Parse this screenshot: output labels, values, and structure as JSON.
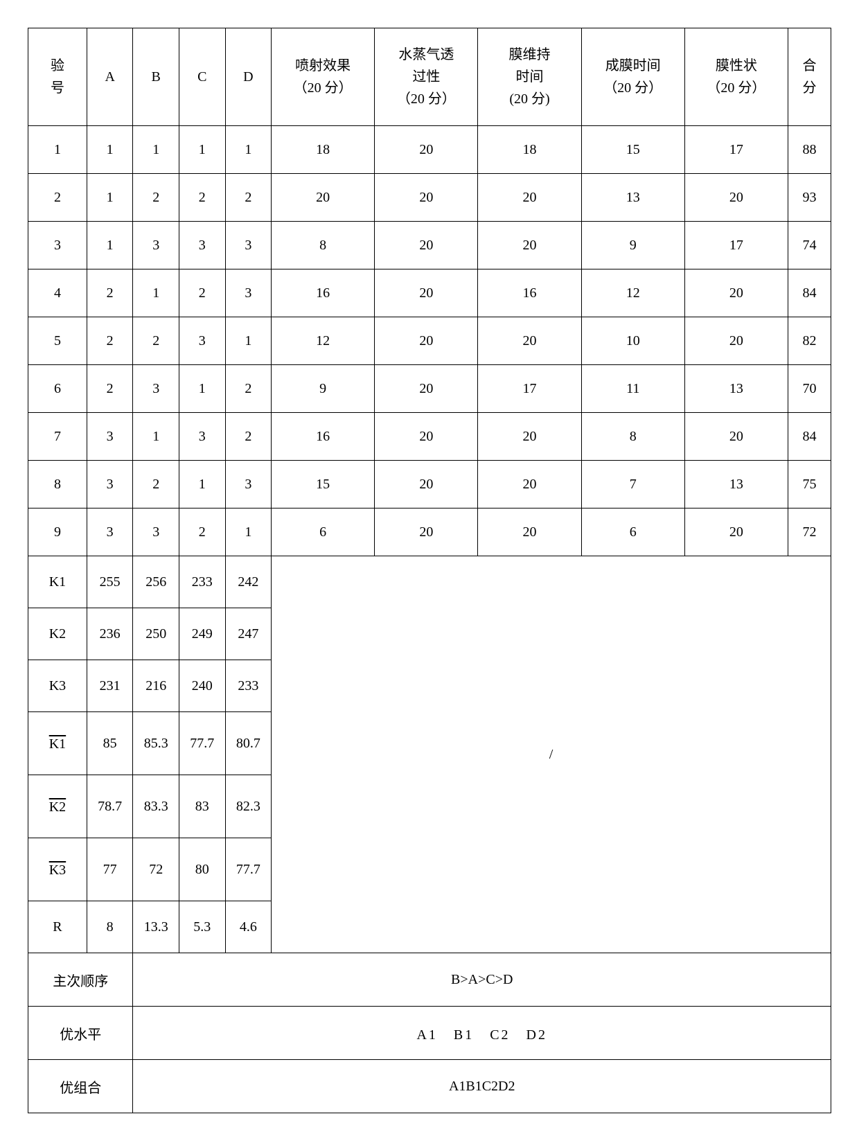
{
  "headers": {
    "exp_no": "验\n号",
    "A": "A",
    "B": "B",
    "C": "C",
    "D": "D",
    "spray": "喷射效果\n（20 分）",
    "vapor": "水蒸气透\n过性\n（20 分）",
    "duration": "膜维持\n时间\n(20 分)",
    "film_time": "成膜时间\n（20 分）",
    "film_shape": "膜性状\n（20 分）",
    "total": "合\n分"
  },
  "rows": [
    {
      "n": "1",
      "A": "1",
      "B": "1",
      "C": "1",
      "D": "1",
      "s1": "18",
      "s2": "20",
      "s3": "18",
      "s4": "15",
      "s5": "17",
      "t": "88"
    },
    {
      "n": "2",
      "A": "1",
      "B": "2",
      "C": "2",
      "D": "2",
      "s1": "20",
      "s2": "20",
      "s3": "20",
      "s4": "13",
      "s5": "20",
      "t": "93"
    },
    {
      "n": "3",
      "A": "1",
      "B": "3",
      "C": "3",
      "D": "3",
      "s1": "8",
      "s2": "20",
      "s3": "20",
      "s4": "9",
      "s5": "17",
      "t": "74"
    },
    {
      "n": "4",
      "A": "2",
      "B": "1",
      "C": "2",
      "D": "3",
      "s1": "16",
      "s2": "20",
      "s3": "16",
      "s4": "12",
      "s5": "20",
      "t": "84"
    },
    {
      "n": "5",
      "A": "2",
      "B": "2",
      "C": "3",
      "D": "1",
      "s1": "12",
      "s2": "20",
      "s3": "20",
      "s4": "10",
      "s5": "20",
      "t": "82"
    },
    {
      "n": "6",
      "A": "2",
      "B": "3",
      "C": "1",
      "D": "2",
      "s1": "9",
      "s2": "20",
      "s3": "17",
      "s4": "11",
      "s5": "13",
      "t": "70"
    },
    {
      "n": "7",
      "A": "3",
      "B": "1",
      "C": "3",
      "D": "2",
      "s1": "16",
      "s2": "20",
      "s3": "20",
      "s4": "8",
      "s5": "20",
      "t": "84"
    },
    {
      "n": "8",
      "A": "3",
      "B": "2",
      "C": "1",
      "D": "3",
      "s1": "15",
      "s2": "20",
      "s3": "20",
      "s4": "7",
      "s5": "13",
      "t": "75"
    },
    {
      "n": "9",
      "A": "3",
      "B": "3",
      "C": "2",
      "D": "1",
      "s1": "6",
      "s2": "20",
      "s3": "20",
      "s4": "6",
      "s5": "20",
      "t": "72"
    }
  ],
  "K": [
    {
      "label": "K1",
      "A": "255",
      "B": "256",
      "C": "233",
      "D": "242"
    },
    {
      "label": "K2",
      "A": "236",
      "B": "250",
      "C": "249",
      "D": "247"
    },
    {
      "label": "K3",
      "A": "231",
      "B": "216",
      "C": "240",
      "D": "233"
    }
  ],
  "Kbar": [
    {
      "label": "K1",
      "A": "85",
      "B": "85.3",
      "C": "77.7",
      "D": "80.7"
    },
    {
      "label": "K2",
      "A": "78.7",
      "B": "83.3",
      "C": "83",
      "D": "82.3"
    },
    {
      "label": "K3",
      "A": "77",
      "B": "72",
      "C": "80",
      "D": "77.7"
    }
  ],
  "R": {
    "label": "R",
    "A": "8",
    "B": "13.3",
    "C": "5.3",
    "D": "4.6"
  },
  "slash": "/",
  "summary": {
    "order_label": "主次顺序",
    "order_value": "B>A>C>D",
    "level_label": "优水平",
    "level_value": "A1　B1　C2　D2",
    "combo_label": "优组合",
    "combo_value": "A1B1C2D2"
  }
}
